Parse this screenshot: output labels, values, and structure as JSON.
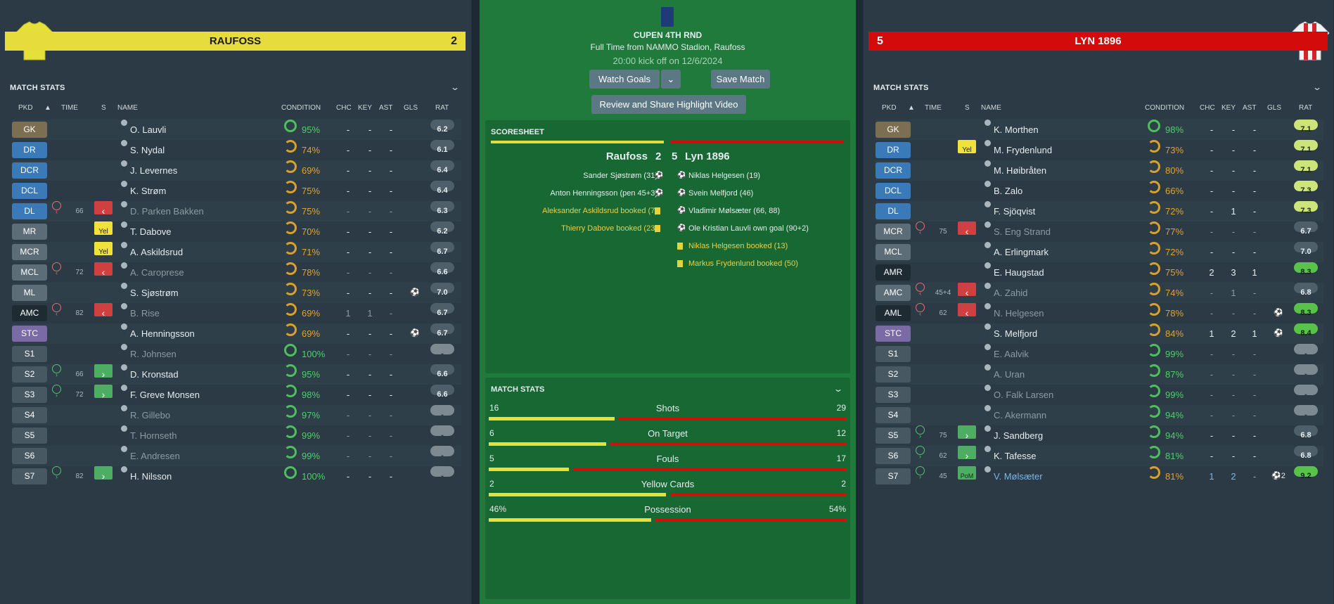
{
  "home": {
    "name": "RAUFOSS",
    "score": "2",
    "stats_title": "MATCH STATS",
    "players": [
      {
        "pos": "GK",
        "cls": "gk",
        "name": "O. Lauvli",
        "cond": "95%",
        "ring": "full",
        "cc": "green",
        "chc": "-",
        "key": "-",
        "ast": "-",
        "gls": "",
        "rat": "6.2",
        "rc": "grey"
      },
      {
        "pos": "DR",
        "cls": "def",
        "name": "S. Nydal",
        "cond": "74%",
        "ring": "med",
        "cc": "orange",
        "chc": "-",
        "key": "-",
        "ast": "-",
        "gls": "",
        "rat": "6.1",
        "rc": "grey"
      },
      {
        "pos": "DCR",
        "cls": "def",
        "name": "J. Levernes",
        "cond": "69%",
        "ring": "med",
        "cc": "orange",
        "chc": "-",
        "key": "-",
        "ast": "-",
        "gls": "",
        "rat": "6.4",
        "rc": "grey"
      },
      {
        "pos": "DCL",
        "cls": "def",
        "name": "K. Strøm",
        "cond": "75%",
        "ring": "med",
        "cc": "orange",
        "chc": "-",
        "key": "-",
        "ast": "-",
        "gls": "",
        "rat": "6.4",
        "rc": "grey"
      },
      {
        "pos": "DL",
        "cls": "def",
        "sub": "off",
        "min": "66",
        "card": "out",
        "name": "D. Parken Bakken",
        "dim": true,
        "cond": "75%",
        "ring": "med",
        "cc": "orange",
        "chc": "-",
        "key": "-",
        "ast": "-",
        "gls": "",
        "rat": "6.3",
        "rc": "grey"
      },
      {
        "pos": "MR",
        "cls": "mid",
        "card": "yel",
        "cardtxt": "Yel",
        "name": "T. Dabove",
        "cond": "70%",
        "ring": "med",
        "cc": "orange",
        "chc": "-",
        "key": "-",
        "ast": "-",
        "gls": "",
        "rat": "6.2",
        "rc": "grey"
      },
      {
        "pos": "MCR",
        "cls": "mid",
        "card": "yel",
        "cardtxt": "Yel",
        "name": "A. Askildsrud",
        "cond": "71%",
        "ring": "med",
        "cc": "orange",
        "chc": "-",
        "key": "-",
        "ast": "-",
        "gls": "",
        "rat": "6.7",
        "rc": "grey"
      },
      {
        "pos": "MCL",
        "cls": "mid",
        "sub": "off",
        "min": "72",
        "card": "out",
        "name": "A. Caroprese",
        "dim": true,
        "cond": "78%",
        "ring": "med",
        "cc": "orange",
        "chc": "-",
        "key": "-",
        "ast": "-",
        "gls": "",
        "rat": "6.6",
        "rc": "grey"
      },
      {
        "pos": "ML",
        "cls": "mid",
        "name": "S. Sjøstrøm",
        "cond": "73%",
        "ring": "med",
        "cc": "orange",
        "chc": "-",
        "key": "-",
        "ast": "-",
        "gls": "⚽",
        "rat": "7.0",
        "rc": "grey"
      },
      {
        "pos": "AMC",
        "cls": "amc",
        "sub": "off",
        "min": "82",
        "card": "out",
        "name": "B. Rise",
        "dim": true,
        "cond": "69%",
        "ring": "med",
        "cc": "orange",
        "chc": "1",
        "key": "1",
        "ast": "-",
        "gls": "",
        "rat": "6.7",
        "rc": "grey"
      },
      {
        "pos": "STC",
        "cls": "st",
        "name": "A. Henningsson",
        "cond": "69%",
        "ring": "med",
        "cc": "orange",
        "chc": "-",
        "key": "-",
        "ast": "-",
        "gls": "⚽",
        "rat": "6.7",
        "rc": "grey"
      },
      {
        "pos": "S1",
        "cls": "sub",
        "name": "R. Johnsen",
        "dim": true,
        "cond": "100%",
        "ring": "full",
        "cc": "green",
        "chc": "-",
        "key": "-",
        "ast": "-",
        "gls": "",
        "rat": "-",
        "rc": "dash"
      },
      {
        "pos": "S2",
        "cls": "sub",
        "sub": "on",
        "min": "66",
        "card": "in",
        "name": "D. Kronstad",
        "cond": "95%",
        "ring": "gr",
        "cc": "green",
        "chc": "-",
        "key": "-",
        "ast": "-",
        "gls": "",
        "rat": "6.6",
        "rc": "grey"
      },
      {
        "pos": "S3",
        "cls": "sub",
        "sub": "on",
        "min": "72",
        "card": "in",
        "name": "F. Greve Monsen",
        "cond": "98%",
        "ring": "gr",
        "cc": "green",
        "chc": "-",
        "key": "-",
        "ast": "-",
        "gls": "",
        "rat": "6.6",
        "rc": "grey"
      },
      {
        "pos": "S4",
        "cls": "sub",
        "name": "R. Gillebo",
        "dim": true,
        "cond": "97%",
        "ring": "gr",
        "cc": "green",
        "chc": "-",
        "key": "-",
        "ast": "-",
        "gls": "",
        "rat": "-",
        "rc": "dash"
      },
      {
        "pos": "S5",
        "cls": "sub",
        "name": "T. Hornseth",
        "dim": true,
        "cond": "99%",
        "ring": "gr",
        "cc": "green",
        "chc": "-",
        "key": "-",
        "ast": "-",
        "gls": "",
        "rat": "-",
        "rc": "dash"
      },
      {
        "pos": "S6",
        "cls": "sub",
        "name": "E. Andresen",
        "dim": true,
        "cond": "99%",
        "ring": "gr",
        "cc": "green",
        "chc": "-",
        "key": "-",
        "ast": "-",
        "gls": "",
        "rat": "-",
        "rc": "dash"
      },
      {
        "pos": "S7",
        "cls": "sub",
        "sub": "on",
        "min": "82",
        "card": "in",
        "name": "H. Nilsson",
        "cond": "100%",
        "ring": "full",
        "cc": "green",
        "chc": "-",
        "key": "-",
        "ast": "-",
        "gls": "",
        "rat": "-",
        "rc": "dash"
      }
    ]
  },
  "away": {
    "name": "LYN 1896",
    "score": "5",
    "stats_title": "MATCH STATS",
    "players": [
      {
        "pos": "GK",
        "cls": "gk",
        "name": "K. Morthen",
        "cond": "98%",
        "ring": "full",
        "cc": "green",
        "chc": "-",
        "key": "-",
        "ast": "-",
        "gls": "",
        "rat": "7.1",
        "rc": "lg"
      },
      {
        "pos": "DR",
        "cls": "def",
        "card": "yel",
        "cardtxt": "Yel",
        "name": "M. Frydenlund",
        "cond": "73%",
        "ring": "med",
        "cc": "orange",
        "chc": "-",
        "key": "-",
        "ast": "-",
        "gls": "",
        "rat": "7.1",
        "rc": "lg"
      },
      {
        "pos": "DCR",
        "cls": "def",
        "name": "M. Høibråten",
        "cond": "80%",
        "ring": "med",
        "cc": "orange",
        "chc": "-",
        "key": "-",
        "ast": "-",
        "gls": "",
        "rat": "7.1",
        "rc": "lg"
      },
      {
        "pos": "DCL",
        "cls": "def",
        "name": "B. Zalo",
        "cond": "66%",
        "ring": "med",
        "cc": "orange",
        "chc": "-",
        "key": "-",
        "ast": "-",
        "gls": "",
        "rat": "7.3",
        "rc": "lg"
      },
      {
        "pos": "DL",
        "cls": "def",
        "name": "F. Sjöqvist",
        "cond": "72%",
        "ring": "med",
        "cc": "orange",
        "chc": "-",
        "key": "1",
        "ast": "-",
        "gls": "",
        "rat": "7.3",
        "rc": "lg"
      },
      {
        "pos": "MCR",
        "cls": "mid",
        "sub": "off",
        "min": "75",
        "card": "out",
        "name": "S. Eng Strand",
        "dim": true,
        "cond": "77%",
        "ring": "med",
        "cc": "orange",
        "chc": "-",
        "key": "-",
        "ast": "-",
        "gls": "",
        "rat": "6.7",
        "rc": "grey"
      },
      {
        "pos": "MCL",
        "cls": "mid",
        "name": "A. Erlingmark",
        "cond": "72%",
        "ring": "med",
        "cc": "orange",
        "chc": "-",
        "key": "-",
        "ast": "-",
        "gls": "",
        "rat": "7.0",
        "rc": "grey"
      },
      {
        "pos": "AMR",
        "cls": "amc",
        "name": "E. Haugstad",
        "cond": "75%",
        "ring": "med",
        "cc": "orange",
        "chc": "2",
        "key": "3",
        "ast": "1",
        "gls": "",
        "rat": "8.3",
        "rc": "dg"
      },
      {
        "pos": "AMC",
        "cls": "mid",
        "sub": "off",
        "min": "45+4",
        "card": "out",
        "name": "A. Zahid",
        "dim": true,
        "cond": "74%",
        "ring": "med",
        "cc": "orange",
        "chc": "-",
        "key": "1",
        "ast": "-",
        "gls": "",
        "rat": "6.8",
        "rc": "grey"
      },
      {
        "pos": "AML",
        "cls": "amc",
        "sub": "off",
        "min": "62",
        "card": "out",
        "name": "N. Helgesen",
        "dim": true,
        "cond": "78%",
        "ring": "med",
        "cc": "orange",
        "chc": "-",
        "key": "-",
        "ast": "-",
        "gls": "⚽",
        "rat": "8.3",
        "rc": "dg"
      },
      {
        "pos": "STC",
        "cls": "st",
        "name": "S. Melfjord",
        "cond": "84%",
        "ring": "med",
        "cc": "orange",
        "chc": "1",
        "key": "2",
        "ast": "1",
        "gls": "⚽",
        "rat": "8.4",
        "rc": "dg"
      },
      {
        "pos": "S1",
        "cls": "sub",
        "name": "E. Aalvik",
        "dim": true,
        "cond": "99%",
        "ring": "gr",
        "cc": "green",
        "chc": "-",
        "key": "-",
        "ast": "-",
        "gls": "",
        "rat": "-",
        "rc": "dash"
      },
      {
        "pos": "S2",
        "cls": "sub",
        "name": "A. Uran",
        "dim": true,
        "cond": "87%",
        "ring": "gr",
        "cc": "green",
        "chc": "-",
        "key": "-",
        "ast": "-",
        "gls": "",
        "rat": "-",
        "rc": "dash"
      },
      {
        "pos": "S3",
        "cls": "sub",
        "name": "O. Falk Larsen",
        "dim": true,
        "cond": "99%",
        "ring": "gr",
        "cc": "green",
        "chc": "-",
        "key": "-",
        "ast": "-",
        "gls": "",
        "rat": "-",
        "rc": "dash"
      },
      {
        "pos": "S4",
        "cls": "sub",
        "name": "C. Akermann",
        "dim": true,
        "cond": "94%",
        "ring": "gr",
        "cc": "green",
        "chc": "-",
        "key": "-",
        "ast": "-",
        "gls": "",
        "rat": "-",
        "rc": "dash"
      },
      {
        "pos": "S5",
        "cls": "sub",
        "sub": "on",
        "min": "75",
        "card": "in",
        "name": "J. Sandberg",
        "cond": "94%",
        "ring": "gr",
        "cc": "green",
        "chc": "-",
        "key": "-",
        "ast": "-",
        "gls": "",
        "rat": "6.8",
        "rc": "grey"
      },
      {
        "pos": "S6",
        "cls": "sub",
        "sub": "on",
        "min": "62",
        "card": "in",
        "name": "K. Tafesse",
        "cond": "81%",
        "ring": "gr",
        "cc": "green",
        "chc": "-",
        "key": "-",
        "ast": "-",
        "gls": "",
        "rat": "6.8",
        "rc": "grey"
      },
      {
        "pos": "S7",
        "cls": "sub",
        "sub": "on",
        "min": "45",
        "card": "pom",
        "cardtxt": "PoM",
        "name": "V. Mølsæter",
        "blue": true,
        "cond": "81%",
        "ring": "med",
        "cc": "orange",
        "chc": "1",
        "key": "2",
        "ast": "-",
        "gls": "⚽2",
        "rat": "9.2",
        "rc": "dg"
      }
    ]
  },
  "columns": {
    "pkd": "PKD",
    "time": "TIME",
    "s": "S",
    "name": "NAME",
    "condition": "CONDITION",
    "chc": "CHC",
    "key": "KEY",
    "ast": "AST",
    "gls": "GLS",
    "rat": "RAT"
  },
  "match": {
    "competition": "CUPEN 4TH RND",
    "venue": "Full Time from NAMMO Stadion, Raufoss",
    "kickoff": "20:00 kick off on 12/6/2024",
    "watch_goals": "Watch Goals",
    "save_match": "Save Match",
    "review": "Review and Share Highlight Video",
    "scoresheet_title": "SCORESHEET",
    "home_name": "Raufoss",
    "home_score": "2",
    "away_score": "5",
    "away_name": "Lyn 1896",
    "home_events": [
      {
        "text": "Sander Sjøstrøm (31)",
        "type": "goal"
      },
      {
        "text": "Anton Henningsson (pen 45+3)",
        "type": "goal"
      },
      {
        "text": "Aleksander Askildsrud booked (7)",
        "type": "card"
      },
      {
        "text": "Thierry Dabove booked (23)",
        "type": "card"
      }
    ],
    "away_events": [
      {
        "text": "Niklas Helgesen (19)",
        "type": "goal"
      },
      {
        "text": "Svein Melfjord (46)",
        "type": "goal"
      },
      {
        "text": "Vladimir Mølsæter (66, 88)",
        "type": "goal"
      },
      {
        "text": "Ole Kristian Lauvli own goal (90+2)",
        "type": "og"
      },
      {
        "text": "Niklas Helgesen booked (13)",
        "type": "card"
      },
      {
        "text": "Markus Frydenlund booked (50)",
        "type": "card"
      }
    ],
    "stats_title": "MATCH STATS",
    "stats": [
      {
        "label": "Shots",
        "home": "16",
        "away": "29",
        "home_frac": 0.356
      },
      {
        "label": "On Target",
        "home": "6",
        "away": "12",
        "home_frac": 0.333
      },
      {
        "label": "Fouls",
        "home": "5",
        "away": "17",
        "home_frac": 0.227
      },
      {
        "label": "Yellow Cards",
        "home": "2",
        "away": "2",
        "home_frac": 0.5
      },
      {
        "label": "Possession",
        "home": "46%",
        "away": "54%",
        "home_frac": 0.46
      }
    ]
  },
  "colors": {
    "home": "#e6dc3b",
    "away": "#d30b0b",
    "pitch": "#1f7a3b"
  }
}
